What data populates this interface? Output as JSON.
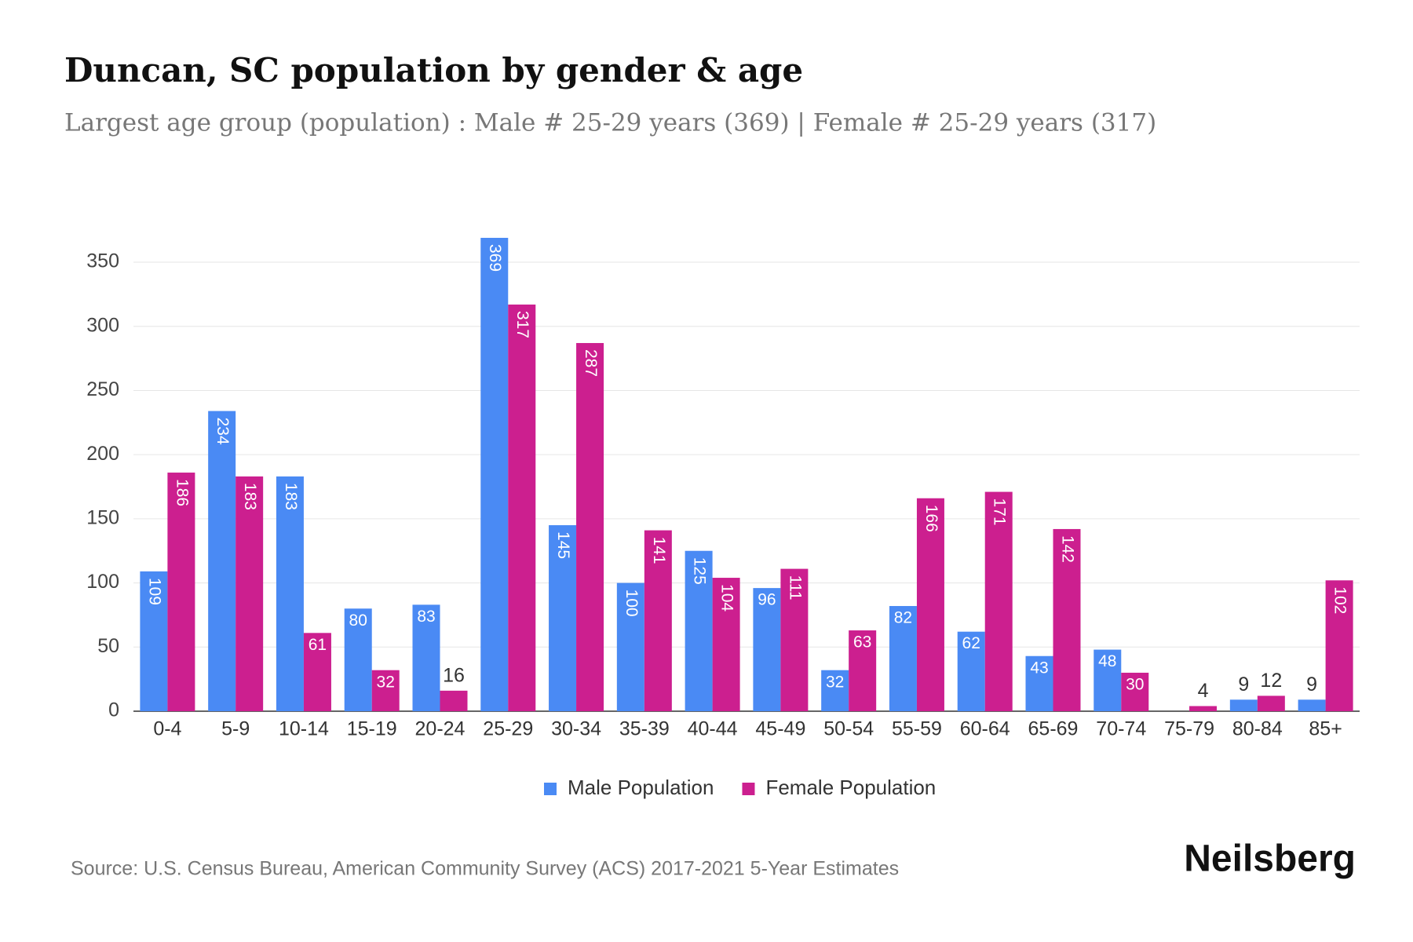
{
  "chart_data": {
    "type": "bar",
    "title": "Duncan, SC population by gender & age",
    "subtitle": "Largest age group (population) : Male # 25-29 years (369) | Female # 25-29 years (317)",
    "categories": [
      "0-4",
      "5-9",
      "10-14",
      "15-19",
      "20-24",
      "25-29",
      "30-34",
      "35-39",
      "40-44",
      "45-49",
      "50-54",
      "55-59",
      "60-64",
      "65-69",
      "70-74",
      "75-79",
      "80-84",
      "85+"
    ],
    "series": [
      {
        "name": "Male Population",
        "color": "#4a8af4",
        "values": [
          109,
          234,
          183,
          80,
          83,
          369,
          145,
          100,
          125,
          96,
          32,
          82,
          62,
          43,
          48,
          null,
          9,
          9
        ]
      },
      {
        "name": "Female Population",
        "color": "#cc1f8f",
        "values": [
          186,
          183,
          61,
          32,
          16,
          317,
          287,
          141,
          104,
          111,
          63,
          166,
          171,
          142,
          30,
          4,
          12,
          102
        ]
      }
    ],
    "ylim": [
      0,
      380
    ],
    "yticks": [
      0,
      50,
      100,
      150,
      200,
      250,
      300,
      350
    ],
    "grid": true,
    "legend": "bottom",
    "source": "Source: U.S. Census Bureau, American Community Survey (ACS) 2017-2021 5-Year Estimates",
    "brand": "Neilsberg"
  }
}
